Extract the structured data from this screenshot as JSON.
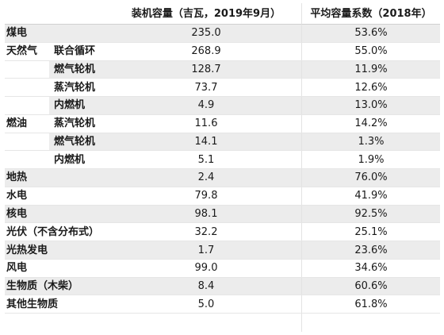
{
  "header": {
    "capacity": "装机容量（吉瓦，2019年9月）",
    "factor": "平均容量系数（2018年）"
  },
  "rows": [
    {
      "type": "煤电",
      "sub": "",
      "capacity": "235.0",
      "factor": "53.6%"
    },
    {
      "type": "天然气",
      "sub": "联合循环",
      "capacity": "268.9",
      "factor": "55.0%"
    },
    {
      "type": "",
      "sub": "燃气轮机",
      "capacity": "128.7",
      "factor": "11.9%"
    },
    {
      "type": "",
      "sub": "蒸汽轮机",
      "capacity": "73.7",
      "factor": "12.6%"
    },
    {
      "type": "",
      "sub": "内燃机",
      "capacity": "4.9",
      "factor": "13.0%"
    },
    {
      "type": "燃油",
      "sub": "蒸汽轮机",
      "capacity": "11.6",
      "factor": "14.2%"
    },
    {
      "type": "",
      "sub": "燃气轮机",
      "capacity": "14.1",
      "factor": "1.3%"
    },
    {
      "type": "",
      "sub": "内燃机",
      "capacity": "5.1",
      "factor": "1.9%"
    },
    {
      "type": "地热",
      "sub": "",
      "capacity": "2.4",
      "factor": "76.0%"
    },
    {
      "type": "水电",
      "sub": "",
      "capacity": "79.8",
      "factor": "41.9%"
    },
    {
      "type": "核电",
      "sub": "",
      "capacity": "98.1",
      "factor": "92.5%"
    },
    {
      "type": "光伏（不含分布式）",
      "sub": "",
      "capacity": "32.2",
      "factor": "25.1%"
    },
    {
      "type": "光热发电",
      "sub": "",
      "capacity": "1.7",
      "factor": "23.6%"
    },
    {
      "type": "风电",
      "sub": "",
      "capacity": "99.0",
      "factor": "34.6%"
    },
    {
      "type": "生物质（木柴）",
      "sub": "",
      "capacity": "8.4",
      "factor": "60.6%"
    },
    {
      "type": "其他生物质",
      "sub": "",
      "capacity": "5.0",
      "factor": "61.8%"
    }
  ]
}
